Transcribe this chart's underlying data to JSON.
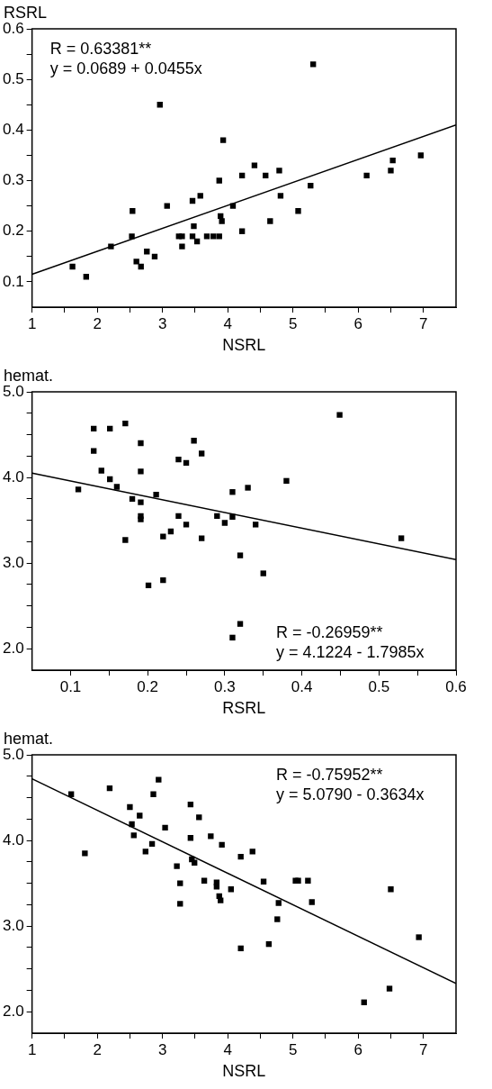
{
  "chart_data": [
    {
      "type": "scatter",
      "xlabel": "NSRL",
      "ylabel": "RSRL",
      "marker": "square",
      "grid": false,
      "legend": false,
      "xlim": [
        1,
        7.5
      ],
      "ylim": [
        0.05,
        0.6
      ],
      "xticks": [
        1,
        {
          "value": 1.5,
          "label": null
        },
        2,
        {
          "value": 2.5,
          "label": null
        },
        3,
        {
          "value": 3.5,
          "label": null
        },
        4,
        {
          "value": 4.5,
          "label": null
        },
        5,
        {
          "value": 5.5,
          "label": null
        },
        6,
        {
          "value": 6.5,
          "label": null
        },
        7
      ],
      "yticks": [
        0.1,
        {
          "value": 0.15,
          "label": null
        },
        0.2,
        {
          "value": 0.25,
          "label": null
        },
        0.3,
        {
          "value": 0.35,
          "label": null
        },
        0.4,
        {
          "value": 0.45,
          "label": null
        },
        0.5,
        {
          "value": 0.55,
          "label": null
        },
        0.6
      ],
      "annotations": [
        "R = 0.63381**",
        "y = 0.0689 + 0.0455x"
      ],
      "series": [
        {
          "color": "#000000",
          "x": [
            1.62,
            1.83,
            2.21,
            2.54,
            2.53,
            2.6,
            2.67,
            2.76,
            2.88,
            2.96,
            3.07,
            3.25,
            3.3,
            3.3,
            3.46,
            3.46,
            3.48,
            3.53,
            3.58,
            3.68,
            3.78,
            3.87,
            3.87,
            3.89,
            3.91,
            3.93,
            4.08,
            4.22,
            4.22,
            4.41,
            4.58,
            4.65,
            4.79,
            4.81,
            5.08,
            5.27,
            5.31,
            6.13,
            6.5,
            6.53,
            6.96
          ],
          "values": [
            0.13,
            0.11,
            0.17,
            0.24,
            0.19,
            0.14,
            0.13,
            0.16,
            0.15,
            0.45,
            0.25,
            0.19,
            0.19,
            0.17,
            0.26,
            0.19,
            0.21,
            0.18,
            0.27,
            0.19,
            0.19,
            0.19,
            0.3,
            0.23,
            0.22,
            0.38,
            0.25,
            0.2,
            0.31,
            0.33,
            0.31,
            0.22,
            0.32,
            0.27,
            0.24,
            0.29,
            0.53,
            0.31,
            0.32,
            0.34,
            0.35
          ]
        },
        {
          "type": "line",
          "color": "#000000",
          "marker": "none",
          "x": [
            1,
            7.5
          ],
          "values": [
            0.115,
            0.41
          ]
        }
      ]
    },
    {
      "type": "scatter",
      "xlabel": "RSRL",
      "ylabel": "hemat.",
      "marker": "square",
      "grid": false,
      "legend": false,
      "xlim": [
        0.05,
        0.6
      ],
      "ylim": [
        1.75,
        5.0
      ],
      "xticks": [
        0.1,
        {
          "value": 0.15,
          "label": null
        },
        0.2,
        {
          "value": 0.25,
          "label": null
        },
        0.3,
        {
          "value": 0.35,
          "label": null
        },
        0.4,
        {
          "value": 0.45,
          "label": null
        },
        0.5,
        {
          "value": 0.55,
          "label": null
        },
        0.6
      ],
      "yticks": [
        {
          "value": 2,
          "label": "2.0"
        },
        {
          "value": 2.25,
          "label": null
        },
        {
          "value": 2.5,
          "label": null
        },
        {
          "value": 2.75,
          "label": null
        },
        {
          "value": 3,
          "label": "3.0"
        },
        {
          "value": 3.25,
          "label": null
        },
        {
          "value": 3.5,
          "label": null
        },
        {
          "value": 3.75,
          "label": null
        },
        {
          "value": 4,
          "label": "4.0"
        },
        {
          "value": 4.25,
          "label": null
        },
        {
          "value": 4.5,
          "label": null
        },
        {
          "value": 4.75,
          "label": null
        },
        {
          "value": 5,
          "label": "5.0"
        }
      ],
      "annotations": [
        "R = -0.26959**",
        "y = 4.1224 - 1.7985x"
      ],
      "series": [
        {
          "color": "#000000",
          "x": [
            0.11,
            0.13,
            0.13,
            0.14,
            0.151,
            0.151,
            0.16,
            0.171,
            0.171,
            0.18,
            0.191,
            0.191,
            0.191,
            0.191,
            0.191,
            0.201,
            0.211,
            0.22,
            0.22,
            0.23,
            0.24,
            0.24,
            0.25,
            0.25,
            0.26,
            0.27,
            0.27,
            0.29,
            0.3,
            0.31,
            0.31,
            0.31,
            0.32,
            0.32,
            0.33,
            0.34,
            0.35,
            0.38,
            0.449,
            0.529
          ],
          "values": [
            3.86,
            4.57,
            4.31,
            4.08,
            4.57,
            3.98,
            3.89,
            4.63,
            3.27,
            3.75,
            4.4,
            4.07,
            3.71,
            3.55,
            3.51,
            2.74,
            3.8,
            3.31,
            2.8,
            3.37,
            4.21,
            3.55,
            4.17,
            3.45,
            4.43,
            4.28,
            3.29,
            3.55,
            3.47,
            3.83,
            3.54,
            2.13,
            3.09,
            2.29,
            3.88,
            3.45,
            2.88,
            3.96,
            4.73,
            3.29
          ]
        },
        {
          "type": "line",
          "color": "#000000",
          "marker": "none",
          "x": [
            0.05,
            0.6
          ],
          "values": [
            4.05,
            3.04
          ]
        }
      ]
    },
    {
      "type": "scatter",
      "xlabel": "NSRL",
      "ylabel": "hemat.",
      "marker": "square",
      "grid": false,
      "legend": false,
      "xlim": [
        1,
        7.5
      ],
      "ylim": [
        1.75,
        5.0
      ],
      "xticks": [
        1,
        {
          "value": 1.5,
          "label": null
        },
        2,
        {
          "value": 2.5,
          "label": null
        },
        3,
        {
          "value": 3.5,
          "label": null
        },
        4,
        {
          "value": 4.5,
          "label": null
        },
        5,
        {
          "value": 5.5,
          "label": null
        },
        6,
        {
          "value": 6.5,
          "label": null
        },
        7
      ],
      "yticks": [
        {
          "value": 2,
          "label": "2.0"
        },
        {
          "value": 2.25,
          "label": null
        },
        {
          "value": 2.5,
          "label": null
        },
        {
          "value": 2.75,
          "label": null
        },
        {
          "value": 3,
          "label": "3.0"
        },
        {
          "value": 3.25,
          "label": null
        },
        {
          "value": 3.5,
          "label": null
        },
        {
          "value": 3.75,
          "label": null
        },
        {
          "value": 4,
          "label": "4.0"
        },
        {
          "value": 4.25,
          "label": null
        },
        {
          "value": 4.5,
          "label": null
        },
        {
          "value": 4.75,
          "label": null
        },
        {
          "value": 5,
          "label": "5.0"
        }
      ],
      "annotations": [
        "R = -0.75952**",
        "y = 5.0790 - 0.3634x"
      ],
      "series": [
        {
          "color": "#000000",
          "x": [
            1.6,
            1.81,
            2.19,
            2.5,
            2.53,
            2.56,
            2.65,
            2.74,
            2.84,
            2.86,
            2.94,
            3.04,
            3.22,
            3.27,
            3.27,
            3.43,
            3.43,
            3.45,
            3.49,
            3.56,
            3.64,
            3.74,
            3.83,
            3.83,
            3.87,
            3.89,
            3.91,
            4.05,
            4.2,
            4.2,
            4.38,
            4.55,
            4.63,
            4.76,
            4.78,
            5.04,
            5.08,
            5.23,
            5.29,
            6.09,
            6.48,
            6.5,
            6.93
          ],
          "values": [
            4.54,
            3.85,
            4.61,
            4.39,
            4.19,
            4.06,
            4.29,
            3.87,
            3.96,
            4.54,
            4.71,
            4.15,
            3.7,
            3.5,
            3.26,
            4.42,
            4.03,
            3.78,
            3.74,
            4.27,
            3.53,
            4.05,
            3.51,
            3.46,
            3.35,
            3.3,
            3.95,
            3.43,
            3.81,
            2.74,
            3.87,
            3.52,
            2.79,
            3.08,
            3.27,
            3.53,
            3.53,
            3.53,
            3.28,
            2.11,
            2.27,
            3.43,
            2.87
          ]
        },
        {
          "type": "line",
          "color": "#000000",
          "marker": "none",
          "x": [
            1,
            7.5
          ],
          "values": [
            4.72,
            2.33
          ]
        }
      ]
    }
  ]
}
